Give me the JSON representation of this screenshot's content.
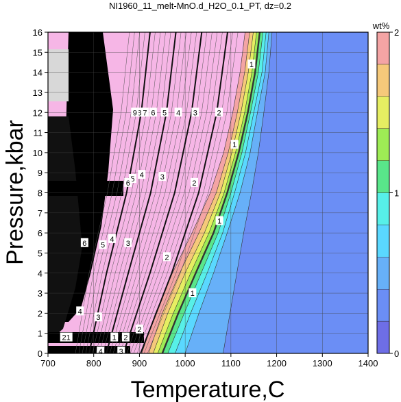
{
  "chart_data": {
    "type": "heatmap",
    "title": "NI1960_11_melt-MnO.d_H2O_0.1_PT, dz=0.2",
    "xlabel": "Temperature,C",
    "ylabel": "Pressure,kbar",
    "xlim": [
      700,
      1400
    ],
    "ylim": [
      0,
      16
    ],
    "xticks": [
      700,
      800,
      900,
      1000,
      1100,
      1200,
      1300,
      1400
    ],
    "yticks": [
      0,
      1,
      2,
      3,
      4,
      5,
      6,
      7,
      8,
      9,
      10,
      11,
      12,
      13,
      14,
      15,
      16
    ],
    "grid": true,
    "colorbar": {
      "title": "wt%",
      "range": [
        0,
        2
      ],
      "ticks": [
        0,
        1,
        2
      ],
      "step": 0.2,
      "colors": [
        "#6e6ee6",
        "#6b8ef5",
        "#67b0f8",
        "#5ad8ff",
        "#57f0e8",
        "#59e68a",
        "#9eec55",
        "#e6ee62",
        "#f6c97a",
        "#f4a4a4",
        "#f6b6e6"
      ]
    },
    "contour_bands": [
      {
        "level": 0.2,
        "color": "#6b8ef5",
        "boundary": [
          [
            1083,
            0
          ],
          [
            1098,
            2
          ],
          [
            1113,
            4
          ],
          [
            1128,
            6
          ],
          [
            1145,
            8
          ],
          [
            1160,
            10
          ],
          [
            1172,
            12
          ],
          [
            1183,
            14
          ],
          [
            1190,
            16
          ]
        ]
      },
      {
        "level": 0.4,
        "color": "#67b0f8",
        "boundary": [
          [
            1000,
            0
          ],
          [
            1030,
            2
          ],
          [
            1062,
            4
          ],
          [
            1092,
            6
          ],
          [
            1120,
            8
          ],
          [
            1142,
            10
          ],
          [
            1158,
            12
          ],
          [
            1175,
            14
          ],
          [
            1183,
            16
          ]
        ]
      },
      {
        "level": 0.6,
        "color": "#5ad8ff",
        "boundary": [
          [
            978,
            0
          ],
          [
            1012,
            2
          ],
          [
            1048,
            4
          ],
          [
            1082,
            6
          ],
          [
            1108,
            8
          ],
          [
            1132,
            10
          ],
          [
            1150,
            12
          ],
          [
            1168,
            14
          ],
          [
            1177,
            16
          ]
        ]
      },
      {
        "level": 0.8,
        "color": "#57f0e8",
        "boundary": [
          [
            962,
            0
          ],
          [
            998,
            2
          ],
          [
            1035,
            4
          ],
          [
            1072,
            6
          ],
          [
            1100,
            8
          ],
          [
            1124,
            10
          ],
          [
            1143,
            12
          ],
          [
            1160,
            14
          ],
          [
            1170,
            16
          ]
        ]
      },
      {
        "level": 1.0,
        "color": "#59e68a",
        "boundary": [
          [
            950,
            0
          ],
          [
            985,
            2
          ],
          [
            1023,
            4
          ],
          [
            1062,
            6
          ],
          [
            1092,
            8
          ],
          [
            1117,
            10
          ],
          [
            1137,
            12
          ],
          [
            1153,
            14
          ],
          [
            1163,
            16
          ]
        ]
      },
      {
        "level": 1.2,
        "color": "#9eec55",
        "boundary": [
          [
            940,
            0
          ],
          [
            974,
            2
          ],
          [
            1012,
            4
          ],
          [
            1052,
            6
          ],
          [
            1085,
            8
          ],
          [
            1110,
            10
          ],
          [
            1130,
            12
          ],
          [
            1146,
            14
          ],
          [
            1156,
            16
          ]
        ]
      },
      {
        "level": 1.4,
        "color": "#e6ee62",
        "boundary": [
          [
            930,
            0
          ],
          [
            962,
            2
          ],
          [
            1000,
            4
          ],
          [
            1042,
            6
          ],
          [
            1077,
            8
          ],
          [
            1102,
            10
          ],
          [
            1122,
            12
          ],
          [
            1138,
            14
          ],
          [
            1149,
            16
          ]
        ]
      },
      {
        "level": 1.6,
        "color": "#f6c97a",
        "boundary": [
          [
            920,
            0
          ],
          [
            950,
            2
          ],
          [
            988,
            4
          ],
          [
            1030,
            6
          ],
          [
            1068,
            8
          ],
          [
            1094,
            10
          ],
          [
            1114,
            12
          ],
          [
            1130,
            14
          ],
          [
            1141,
            16
          ]
        ]
      },
      {
        "level": 1.8,
        "color": "#f4a4a4",
        "boundary": [
          [
            905,
            0
          ],
          [
            935,
            2
          ],
          [
            972,
            4
          ],
          [
            1015,
            6
          ],
          [
            1055,
            8
          ],
          [
            1084,
            10
          ],
          [
            1104,
            12
          ],
          [
            1120,
            14
          ],
          [
            1131,
            16
          ]
        ]
      },
      {
        "level": 2.0,
        "color": "#f6b6e6",
        "boundary": [
          [
            700,
            0
          ],
          [
            700,
            16
          ]
        ]
      }
    ],
    "contour_labels": [
      {
        "text": "1",
        "x": 1145,
        "y": 14.4
      },
      {
        "text": "1",
        "x": 1108,
        "y": 10.4
      },
      {
        "text": "1",
        "x": 1075,
        "y": 6.6
      },
      {
        "text": "1",
        "x": 1016,
        "y": 3.0
      },
      {
        "text": "2",
        "x": 1074,
        "y": 12.0
      },
      {
        "text": "2",
        "x": 1020,
        "y": 8.5
      },
      {
        "text": "2",
        "x": 960,
        "y": 4.8
      },
      {
        "text": "2",
        "x": 900,
        "y": 1.2
      },
      {
        "text": "3",
        "x": 1022,
        "y": 12.0
      },
      {
        "text": "3",
        "x": 950,
        "y": 8.8
      },
      {
        "text": "3",
        "x": 875,
        "y": 5.5
      },
      {
        "text": "3",
        "x": 810,
        "y": 1.8
      },
      {
        "text": "4",
        "x": 985,
        "y": 12.0
      },
      {
        "text": "4",
        "x": 905,
        "y": 8.9
      },
      {
        "text": "4",
        "x": 840,
        "y": 5.7
      },
      {
        "text": "4",
        "x": 770,
        "y": 2.1
      },
      {
        "text": "5",
        "x": 955,
        "y": 12.0
      },
      {
        "text": "5",
        "x": 885,
        "y": 8.7
      },
      {
        "text": "5",
        "x": 820,
        "y": 5.4
      },
      {
        "text": "6",
        "x": 930,
        "y": 12.0
      },
      {
        "text": "6",
        "x": 875,
        "y": 8.5
      },
      {
        "text": "6",
        "x": 780,
        "y": 5.5
      },
      {
        "text": "7",
        "x": 912,
        "y": 12.0
      },
      {
        "text": "8",
        "x": 900,
        "y": 12.0
      },
      {
        "text": "9",
        "x": 890,
        "y": 12.0
      },
      {
        "text": "1",
        "x": 845,
        "y": 0.8
      },
      {
        "text": "2",
        "x": 870,
        "y": 0.8
      },
      {
        "text": "21",
        "x": 740,
        "y": 0.8
      },
      {
        "text": "4",
        "x": 815,
        "y": 0.1
      },
      {
        "text": "3",
        "x": 860,
        "y": 0.1
      }
    ]
  }
}
